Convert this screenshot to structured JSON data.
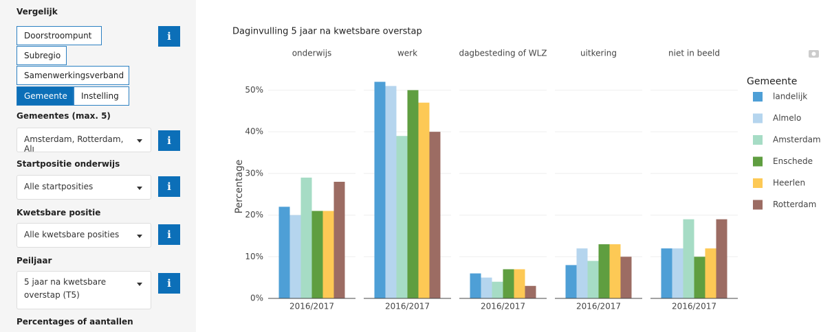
{
  "sidebar": {
    "compare_label": "Vergelijk",
    "compare_options": [
      {
        "label": "Doorstroompunt",
        "selected": false
      },
      {
        "label": "Subregio",
        "selected": false
      },
      {
        "label": "Samenwerkingsverband",
        "selected": false
      },
      {
        "label": "Gemeente",
        "selected": true
      },
      {
        "label": "Instelling",
        "selected": false
      }
    ],
    "info_icon": "i",
    "filters": [
      {
        "label": "Gemeentes (max. 5)",
        "value": "Amsterdam, Rotterdam, Alı"
      },
      {
        "label": "Startpositie onderwijs",
        "value": "Alle startposities"
      },
      {
        "label": "Kwetsbare positie",
        "value": "Alle kwetsbare posities"
      },
      {
        "label": "Peiljaar",
        "value": "5 jaar na kwetsbare overstap (T5)"
      }
    ],
    "next_label": "Percentages of aantallen"
  },
  "chart_data": {
    "type": "bar",
    "title": "Daginvulling 5 jaar na kwetsbare overstap",
    "y_label": "Percentage",
    "facets": [
      "onderwijs",
      "werk",
      "dagbesteding of WLZ",
      "uitkering",
      "niet in beeld"
    ],
    "period": "2016/2017",
    "legend_title": "Gemeente",
    "legend_position": "right",
    "grid": true,
    "ylim": [
      0,
      56
    ],
    "yticks": [
      {
        "value": 0,
        "label": "0%"
      },
      {
        "value": 10,
        "label": "10%"
      },
      {
        "value": 20,
        "label": "20%"
      },
      {
        "value": 30,
        "label": "30%"
      },
      {
        "value": 40,
        "label": "40%"
      },
      {
        "value": 50,
        "label": "50%"
      }
    ],
    "series": [
      {
        "name": "landelijk",
        "color": "#4e9fd6",
        "values": [
          22,
          52,
          6,
          8,
          12
        ]
      },
      {
        "name": "Almelo",
        "color": "#b5d5ee",
        "values": [
          20,
          51,
          5,
          12,
          12
        ]
      },
      {
        "name": "Amsterdam",
        "color": "#a6dcc5",
        "values": [
          29,
          39,
          4,
          9,
          19
        ]
      },
      {
        "name": "Enschede",
        "color": "#5f9e40",
        "values": [
          21,
          50,
          7,
          13,
          10
        ]
      },
      {
        "name": "Heerlen",
        "color": "#fdc955",
        "values": [
          21,
          47,
          7,
          13,
          12
        ]
      },
      {
        "name": "Rotterdam",
        "color": "#9c6c63",
        "values": [
          28,
          40,
          3,
          10,
          19
        ]
      }
    ]
  }
}
